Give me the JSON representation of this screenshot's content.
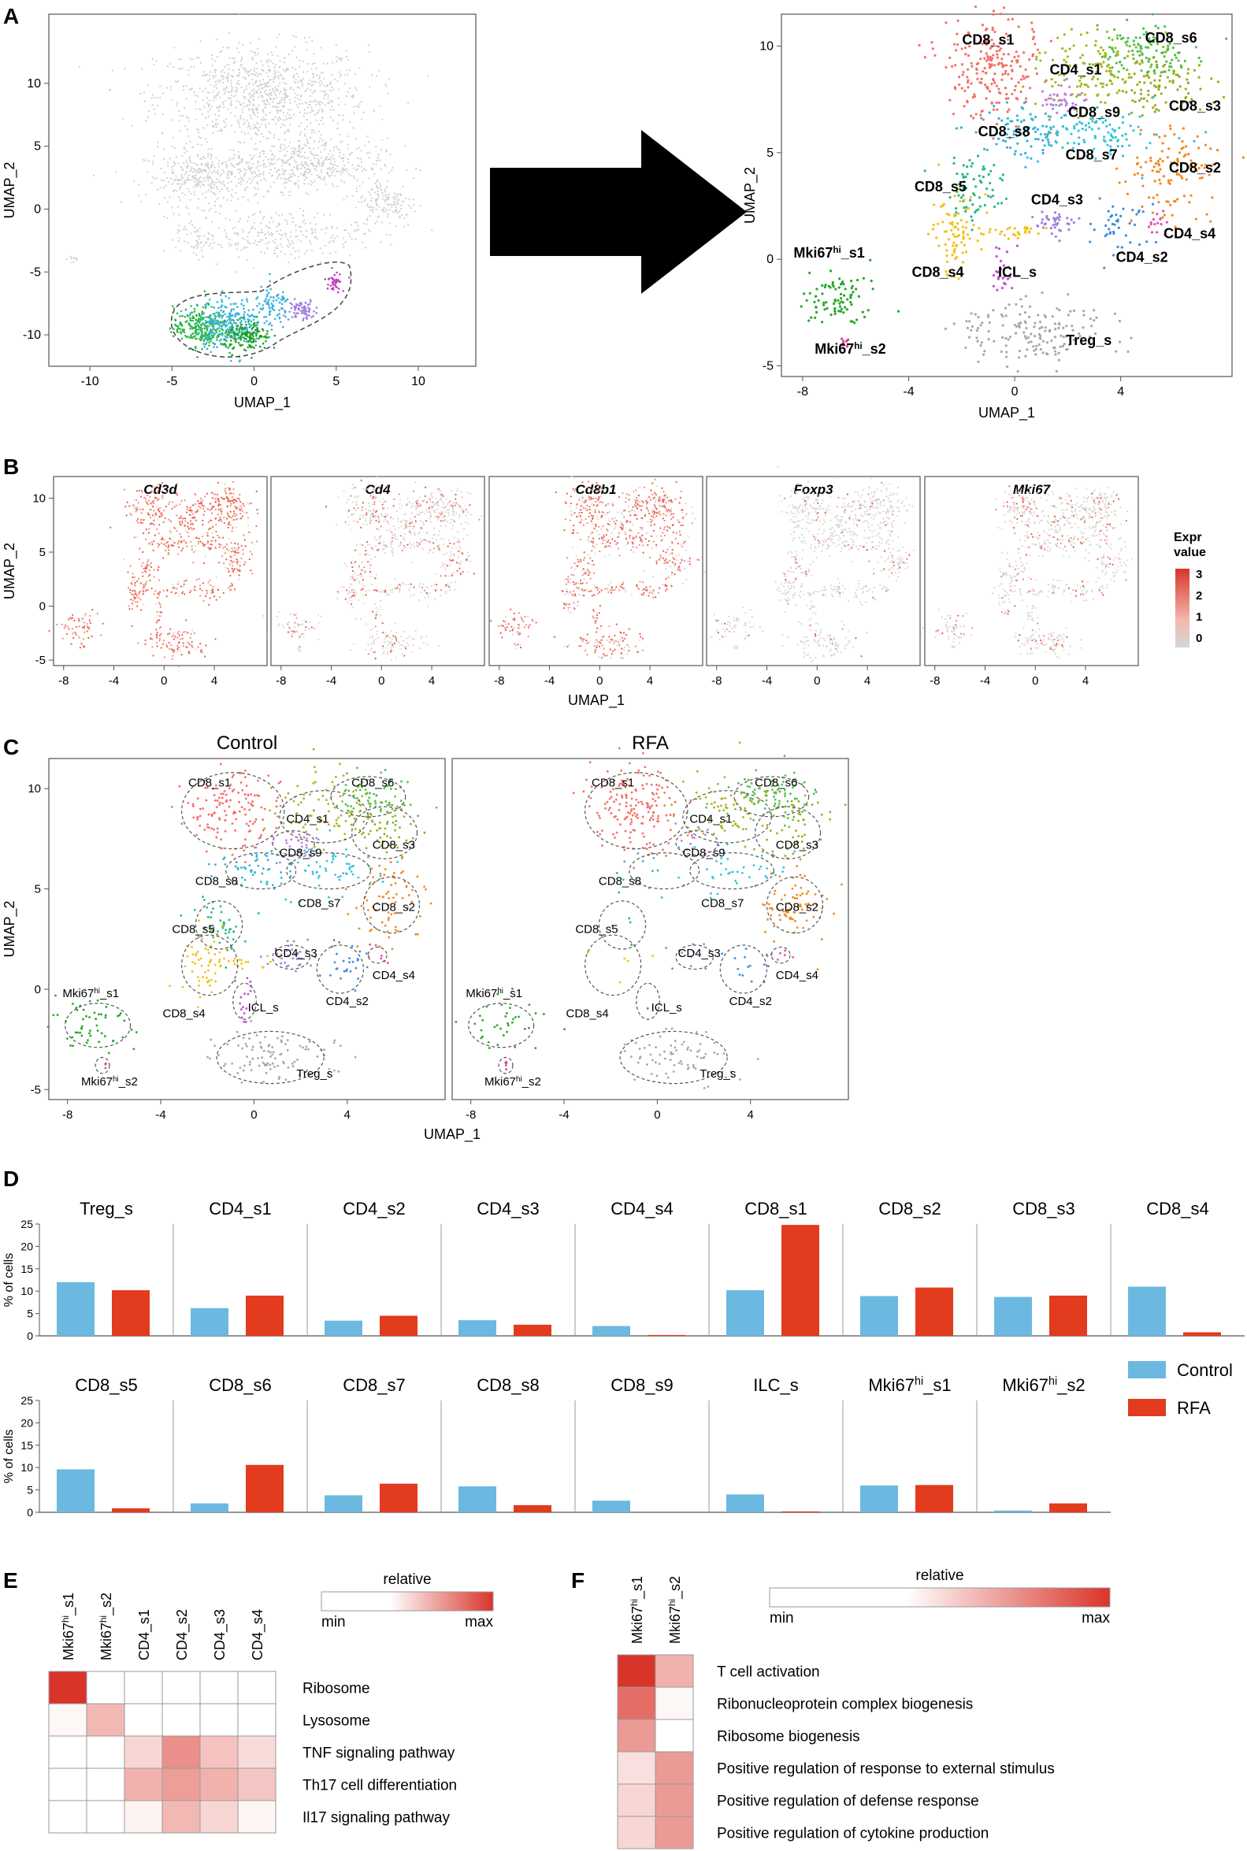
{
  "panel_labels": {
    "A": "A",
    "B": "B",
    "C": "C",
    "D": "D",
    "E": "E",
    "F": "F"
  },
  "colors": {
    "control": "#6BB9E0",
    "rfa": "#E23B1E",
    "grey": "#cfcfcf",
    "heat_max": "#d9342a",
    "heat_min": "#ffffff",
    "clusters": {
      "CD8_s1": "#f4706a",
      "CD8_s6": "#4fc04a",
      "CD4_s1": "#a8b51e",
      "CD8_s3": "#9aac22",
      "CD8_s9": "#c37be0",
      "CD8_s8": "#35b3d9",
      "CD8_s7": "#35c4dc",
      "CD8_s2": "#f08a1f",
      "CD8_s5": "#27b885",
      "CD4_s3": "#9f7fe0",
      "CD4_s4": "#e64fb0",
      "CD4_s2": "#3e8ed8",
      "CD8_s4": "#f2c019",
      "ICL_s": "#c04fd4",
      "Treg_s": "#a8a8a8",
      "Mki67hi_s1": "#27a827",
      "Mki67hi_s2": "#e0409a"
    }
  },
  "chart_data": [
    {
      "id": "A-left",
      "type": "scatter",
      "title": "",
      "xlabel": "UMAP_1",
      "ylabel": "UMAP_2",
      "xlim": [
        -12.5,
        13.5
      ],
      "ylim": [
        -12.5,
        15.5
      ],
      "xticks": [
        "-10",
        "-5",
        "0",
        "5",
        "10"
      ],
      "yticks": [
        "-10",
        "-5",
        "0",
        "5",
        "10"
      ]
    },
    {
      "id": "A-right",
      "type": "scatter",
      "title": "",
      "xlabel": "UMAP_1",
      "ylabel": "UMAP_2",
      "xlim": [
        -8.8,
        8.2
      ],
      "ylim": [
        -5.5,
        11.5
      ],
      "xticks": [
        "-8",
        "-4",
        "0",
        "4"
      ],
      "yticks": [
        "-5",
        "0",
        "5",
        "10"
      ],
      "cluster_labels": [
        {
          "name": "CD8_s1",
          "text": "CD8_s1",
          "x": -1.0,
          "y": 10.3
        },
        {
          "name": "CD8_s6",
          "text": "CD8_s6",
          "x": 5.9,
          "y": 10.4
        },
        {
          "name": "CD4_s1",
          "text": "CD4_s1",
          "x": 2.3,
          "y": 8.9
        },
        {
          "name": "CD8_s3",
          "text": "CD8_s3",
          "x": 6.8,
          "y": 7.2
        },
        {
          "name": "CD8_s9",
          "text": "CD8_s9",
          "x": 3.0,
          "y": 6.9
        },
        {
          "name": "CD8_s8",
          "text": "CD8_s8",
          "x": -0.4,
          "y": 6.0
        },
        {
          "name": "CD8_s7",
          "text": "CD8_s7",
          "x": 2.9,
          "y": 4.9
        },
        {
          "name": "CD8_s2",
          "text": "CD8_s2",
          "x": 6.8,
          "y": 4.3
        },
        {
          "name": "CD8_s5",
          "text": "CD8_s5",
          "x": -2.8,
          "y": 3.4
        },
        {
          "name": "CD4_s3",
          "text": "CD4_s3",
          "x": 1.6,
          "y": 2.8
        },
        {
          "name": "CD4_s4",
          "text": "CD4_s4",
          "x": 6.6,
          "y": 1.2
        },
        {
          "name": "CD4_s2",
          "text": "CD4_s2",
          "x": 4.8,
          "y": 0.1
        },
        {
          "name": "CD8_s4",
          "text": "CD8_s4",
          "x": -2.9,
          "y": -0.6
        },
        {
          "name": "ICL_s",
          "text": "ICL_s",
          "x": 0.1,
          "y": -0.6
        },
        {
          "name": "Treg_s",
          "text": "Treg_s",
          "x": 2.8,
          "y": -3.8
        },
        {
          "name": "Mki67hi_s1",
          "text": "Mki67",
          "sup": "hi",
          "suffix": "_s1",
          "x": -7.0,
          "y": 0.3
        },
        {
          "name": "Mki67hi_s2",
          "text": "Mki67",
          "sup": "hi",
          "suffix": "_s2",
          "x": -6.2,
          "y": -4.2
        }
      ]
    },
    {
      "id": "B",
      "type": "scatter",
      "title": "",
      "xlabel": "UMAP_1",
      "ylabel": "UMAP_2",
      "xlim": [
        -8.8,
        8.2
      ],
      "ylim": [
        -5.5,
        12.0
      ],
      "xticks": [
        "-8",
        "-4",
        "0",
        "4"
      ],
      "yticks": [
        "-5",
        "0",
        "5",
        "10"
      ],
      "panels": [
        {
          "gene": "Cd3d",
          "level": 0.9
        },
        {
          "gene": "Cd4",
          "level": 0.25
        },
        {
          "gene": "Cd8b1",
          "level": 0.75
        },
        {
          "gene": "Foxp3",
          "level": 0.12
        },
        {
          "gene": "Mki67",
          "level": 0.2
        }
      ],
      "legend": {
        "title_line1": "Expr",
        "title_line2": "value",
        "ticks": [
          "3",
          "2",
          "1",
          "0"
        ]
      }
    },
    {
      "id": "C",
      "type": "scatter",
      "title": "",
      "xlabel": "UMAP_1",
      "ylabel": "UMAP_2",
      "xlim": [
        -8.8,
        8.2
      ],
      "ylim": [
        -5.5,
        11.5
      ],
      "xticks": [
        "-8",
        "-4",
        "0",
        "4"
      ],
      "yticks": [
        "-5",
        "0",
        "5",
        "10"
      ],
      "panels": [
        {
          "title": "Control"
        },
        {
          "title": "RFA"
        }
      ],
      "cluster_labels": [
        {
          "text": "CD8_s1",
          "x": -1.9,
          "y": 10.3
        },
        {
          "text": "CD8_s6",
          "x": 5.1,
          "y": 10.3
        },
        {
          "text": "CD4_s1",
          "x": 2.3,
          "y": 8.5
        },
        {
          "text": "CD8_s3",
          "x": 6.0,
          "y": 7.2
        },
        {
          "text": "CD8_s9",
          "x": 2.0,
          "y": 6.8
        },
        {
          "text": "CD8_s8",
          "x": -1.6,
          "y": 5.4
        },
        {
          "text": "CD8_s7",
          "x": 2.8,
          "y": 4.3
        },
        {
          "text": "CD8_s2",
          "x": 6.0,
          "y": 4.1
        },
        {
          "text": "CD8_s5",
          "x": -2.6,
          "y": 3.0
        },
        {
          "text": "CD4_s3",
          "x": 1.8,
          "y": 1.8
        },
        {
          "text": "CD4_s4",
          "x": 6.0,
          "y": 0.7
        },
        {
          "text": "CD4_s2",
          "x": 4.0,
          "y": -0.6
        },
        {
          "text": "CD8_s4",
          "x": -3.0,
          "y": -1.2
        },
        {
          "text": "ICL_s",
          "x": 0.4,
          "y": -0.9
        },
        {
          "text": "Treg_s",
          "x": 2.6,
          "y": -4.2
        },
        {
          "text": "Mki67",
          "sup": "hi",
          "suffix": "_s1",
          "x": -7.0,
          "y": -0.2
        },
        {
          "text": "Mki67",
          "sup": "hi",
          "suffix": "_s2",
          "x": -6.2,
          "y": -4.6
        }
      ]
    },
    {
      "id": "D",
      "type": "bar",
      "title": "",
      "xlabel": "",
      "ylabel": "% of cells",
      "ylim": [
        0,
        25
      ],
      "yticks": [
        "0",
        "5",
        "10",
        "15",
        "20",
        "25"
      ],
      "series_names": [
        "Control",
        "RFA"
      ],
      "clusters": [
        {
          "name": "Treg_s",
          "control": 12.0,
          "rfa": 10.2
        },
        {
          "name": "CD4_s1",
          "control": 6.2,
          "rfa": 9.0
        },
        {
          "name": "CD4_s2",
          "control": 3.4,
          "rfa": 4.5
        },
        {
          "name": "CD4_s3",
          "control": 3.5,
          "rfa": 2.5
        },
        {
          "name": "CD4_s4",
          "control": 2.2,
          "rfa": 0.2
        },
        {
          "name": "CD8_s1",
          "control": 10.2,
          "rfa": 24.8
        },
        {
          "name": "CD8_s2",
          "control": 8.9,
          "rfa": 10.8
        },
        {
          "name": "CD8_s3",
          "control": 8.7,
          "rfa": 9.0
        },
        {
          "name": "CD8_s4",
          "control": 11.0,
          "rfa": 0.8
        },
        {
          "name": "CD8_s5",
          "control": 9.6,
          "rfa": 0.9
        },
        {
          "name": "CD8_s6",
          "control": 2.0,
          "rfa": 10.6
        },
        {
          "name": "CD8_s7",
          "control": 3.8,
          "rfa": 6.4
        },
        {
          "name": "CD8_s8",
          "control": 5.8,
          "rfa": 1.6
        },
        {
          "name": "CD8_s9",
          "control": 2.6,
          "rfa": 0.0
        },
        {
          "name": "ILC_s",
          "control": 4.0,
          "rfa": 0.2
        },
        {
          "name": "Mki67hi_s1",
          "label": "Mki67",
          "sup": "hi",
          "suffix": "_s1",
          "control": 6.0,
          "rfa": 6.1
        },
        {
          "name": "Mki67hi_s2",
          "label": "Mki67",
          "sup": "hi",
          "suffix": "_s2",
          "control": 0.4,
          "rfa": 2.0
        }
      ]
    },
    {
      "id": "E",
      "type": "heatmap",
      "title": "",
      "scale": {
        "title": "relative",
        "min_label": "min",
        "max_label": "max"
      },
      "columns": [
        {
          "label": "Mki67",
          "sup": "hi",
          "suffix": "_s1"
        },
        {
          "label": "Mki67",
          "sup": "hi",
          "suffix": "_s2"
        },
        {
          "label": "CD4_s1"
        },
        {
          "label": "CD4_s2"
        },
        {
          "label": "CD4_s3"
        },
        {
          "label": "CD4_s4"
        }
      ],
      "rows": [
        "Ribosome",
        "Lysosome",
        "TNF signaling pathway",
        "Th17 cell differentiation",
        "Il17 signaling pathway"
      ],
      "values": [
        [
          1.0,
          0.0,
          0.0,
          0.0,
          0.0,
          0.0
        ],
        [
          0.04,
          0.35,
          0.0,
          0.0,
          0.0,
          0.0
        ],
        [
          0.0,
          0.0,
          0.2,
          0.55,
          0.3,
          0.18
        ],
        [
          0.0,
          0.0,
          0.38,
          0.48,
          0.38,
          0.28
        ],
        [
          0.0,
          0.0,
          0.06,
          0.35,
          0.2,
          0.05
        ]
      ]
    },
    {
      "id": "F",
      "type": "heatmap",
      "title": "",
      "scale": {
        "title": "relative",
        "min_label": "min",
        "max_label": "max"
      },
      "columns": [
        {
          "label": "Mki67",
          "sup": "hi",
          "suffix": "_s1"
        },
        {
          "label": "Mki67",
          "sup": "hi",
          "suffix": "_s2"
        }
      ],
      "rows": [
        "T cell activation",
        "Ribonucleoprotein complex biogenesis",
        "Ribosome biogenesis",
        "Positive regulation of response to external stimulus",
        "Positive regulation of defense response",
        "Positive regulation of cytokine production"
      ],
      "values": [
        [
          1.0,
          0.38
        ],
        [
          0.72,
          0.04
        ],
        [
          0.5,
          0.0
        ],
        [
          0.16,
          0.5
        ],
        [
          0.2,
          0.5
        ],
        [
          0.2,
          0.5
        ]
      ]
    }
  ]
}
